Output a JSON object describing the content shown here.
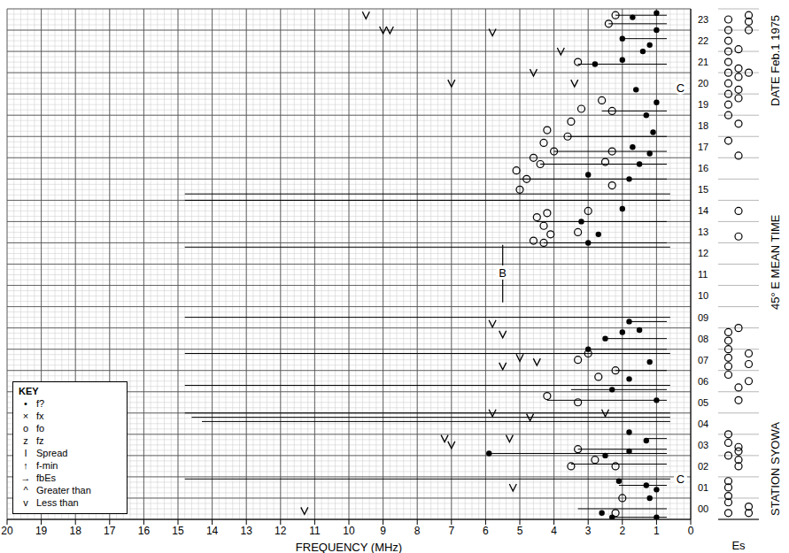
{
  "chart_data": {
    "type": "scatter",
    "title": "STATION SYOWA",
    "subtitle": "DATE Feb.1 1975",
    "y_label": "45° E MEAN TIME",
    "x_label": "FREQUENCY (MHz)",
    "xlim": [
      0,
      20
    ],
    "xticks": [
      0,
      1,
      2,
      3,
      4,
      5,
      6,
      7,
      8,
      9,
      10,
      11,
      12,
      13,
      14,
      15,
      16,
      17,
      18,
      19,
      20
    ],
    "ylim": [
      0,
      24
    ],
    "yticks": [
      {
        "value": 0.5,
        "label": "00"
      },
      {
        "value": 1.5,
        "label": "01"
      },
      {
        "value": 2.5,
        "label": "02"
      },
      {
        "value": 3.5,
        "label": "03"
      },
      {
        "value": 4.5,
        "label": "04"
      },
      {
        "value": 5.5,
        "label": "05"
      },
      {
        "value": 6.5,
        "label": "06"
      },
      {
        "value": 7.5,
        "label": "07"
      },
      {
        "value": 8.5,
        "label": "08"
      },
      {
        "value": 9.5,
        "label": "09"
      },
      {
        "value": 10.5,
        "label": "10"
      },
      {
        "value": 11.5,
        "label": "11"
      },
      {
        "value": 12.5,
        "label": "12"
      },
      {
        "value": 13.5,
        "label": "13"
      },
      {
        "value": 14.5,
        "label": "14"
      },
      {
        "value": 15.5,
        "label": "15"
      },
      {
        "value": 16.5,
        "label": "16"
      },
      {
        "value": 17.5,
        "label": "17"
      },
      {
        "value": 18.5,
        "label": "18"
      },
      {
        "value": 19.5,
        "label": "19"
      },
      {
        "value": 20.5,
        "label": "20"
      },
      {
        "value": 21.5,
        "label": "21"
      },
      {
        "value": 22.5,
        "label": "22"
      },
      {
        "value": 23.5,
        "label": "23"
      }
    ],
    "grid": true,
    "series": [
      {
        "name": "f?",
        "color": "#000000",
        "marker": "dot",
        "points": [
          [
            2.3,
            0.1
          ],
          [
            1.0,
            0.1
          ],
          [
            1.2,
            1.0
          ],
          [
            1.0,
            1.4
          ],
          [
            1.3,
            1.6
          ],
          [
            2.1,
            1.8
          ],
          [
            2.6,
            0.3
          ],
          [
            1.8,
            3.2
          ],
          [
            1.3,
            3.7
          ],
          [
            1.8,
            4.1
          ],
          [
            2.5,
            3.0
          ],
          [
            5.9,
            3.1
          ],
          [
            1.0,
            5.6
          ],
          [
            2.3,
            6.1
          ],
          [
            1.8,
            6.6
          ],
          [
            1.2,
            7.4
          ],
          [
            2.5,
            8.5
          ],
          [
            1.5,
            8.9
          ],
          [
            1.8,
            9.3
          ],
          [
            3.0,
            8.0
          ],
          [
            2.0,
            8.8
          ],
          [
            3.0,
            13.0
          ],
          [
            2.7,
            13.4
          ],
          [
            3.2,
            14.0
          ],
          [
            2.0,
            14.6
          ],
          [
            3.0,
            16.2
          ],
          [
            1.8,
            16.0
          ],
          [
            1.5,
            16.7
          ],
          [
            1.2,
            17.2
          ],
          [
            1.7,
            17.5
          ],
          [
            1.1,
            18.2
          ],
          [
            1.3,
            19.0
          ],
          [
            1.0,
            19.6
          ],
          [
            1.6,
            20.2
          ],
          [
            2.8,
            21.4
          ],
          [
            2.0,
            21.6
          ],
          [
            1.4,
            22.0
          ],
          [
            1.2,
            22.3
          ],
          [
            2.0,
            22.6
          ],
          [
            1.0,
            23.0
          ],
          [
            1.7,
            23.6
          ],
          [
            1.0,
            23.8
          ]
        ]
      },
      {
        "name": "fo",
        "color": "#000000",
        "marker": "circle",
        "points": [
          [
            4.3,
            13.0
          ],
          [
            4.6,
            13.1
          ],
          [
            4.1,
            13.4
          ],
          [
            4.3,
            13.8
          ],
          [
            4.5,
            14.2
          ],
          [
            4.2,
            14.4
          ],
          [
            3.0,
            14.5
          ],
          [
            3.3,
            13.5
          ],
          [
            5.0,
            15.5
          ],
          [
            4.8,
            16.0
          ],
          [
            5.1,
            16.4
          ],
          [
            4.4,
            16.7
          ],
          [
            4.6,
            17.0
          ],
          [
            4.0,
            17.3
          ],
          [
            4.3,
            17.7
          ],
          [
            3.6,
            18.0
          ],
          [
            4.2,
            18.3
          ],
          [
            3.5,
            18.7
          ],
          [
            3.2,
            19.3
          ],
          [
            2.6,
            19.7
          ],
          [
            2.3,
            19.2
          ],
          [
            3.3,
            21.5
          ],
          [
            2.4,
            23.3
          ],
          [
            2.2,
            23.7
          ],
          [
            2.3,
            15.7
          ],
          [
            2.5,
            16.8
          ],
          [
            2.3,
            17.3
          ],
          [
            4.2,
            5.8
          ],
          [
            3.3,
            5.5
          ],
          [
            3.5,
            2.5
          ],
          [
            3.3,
            3.3
          ],
          [
            2.8,
            2.8
          ],
          [
            3.0,
            7.8
          ],
          [
            3.3,
            7.5
          ],
          [
            2.2,
            7.0
          ],
          [
            2.7,
            6.7
          ],
          [
            2.0,
            1.0
          ],
          [
            2.2,
            2.5
          ],
          [
            2.2,
            0.3
          ]
        ]
      },
      {
        "name": "Less than",
        "color": "#000000",
        "marker": "v",
        "points": [
          [
            11.3,
            0.4
          ],
          [
            7.0,
            3.5
          ],
          [
            7.2,
            3.8
          ],
          [
            5.3,
            3.8
          ],
          [
            5.2,
            1.5
          ],
          [
            5.8,
            5.0
          ],
          [
            5.8,
            9.2
          ],
          [
            5.5,
            8.7
          ],
          [
            5.0,
            7.6
          ],
          [
            4.5,
            7.4
          ],
          [
            5.5,
            7.2
          ],
          [
            9.5,
            23.7
          ],
          [
            8.8,
            23.0
          ],
          [
            9.0,
            23.0
          ],
          [
            5.8,
            22.9
          ],
          [
            7.0,
            20.5
          ],
          [
            4.6,
            21.0
          ],
          [
            3.8,
            22.0
          ],
          [
            3.4,
            20.5
          ],
          [
            2.5,
            5.0
          ],
          [
            4.7,
            4.8
          ]
        ]
      }
    ],
    "spread": [
      [
        1.9,
        14.8,
        0.6
      ],
      [
        4.6,
        14.3,
        0.6
      ],
      [
        4.8,
        14.6,
        0.6
      ],
      [
        5.0,
        14.8,
        0.6
      ],
      [
        6.3,
        14.8,
        0.6
      ],
      [
        7.8,
        14.8,
        0.6
      ],
      [
        9.5,
        14.8,
        0.6
      ],
      [
        12.8,
        14.8,
        0.6
      ],
      [
        15.0,
        14.8,
        0.6
      ],
      [
        15.3,
        14.8,
        0.6
      ],
      [
        0.1,
        2.3,
        0.7
      ],
      [
        0.5,
        3.3,
        0.7
      ],
      [
        1.6,
        2.1,
        0.7
      ],
      [
        2.6,
        3.5,
        0.7
      ],
      [
        3.1,
        5.9,
        0.7
      ],
      [
        3.3,
        3.3,
        0.7
      ],
      [
        3.8,
        1.3,
        0.7
      ],
      [
        5.6,
        4.2,
        0.7
      ],
      [
        6.1,
        3.5,
        0.7
      ],
      [
        7.0,
        2.2,
        0.7
      ],
      [
        8.0,
        3.0,
        0.7
      ],
      [
        8.5,
        2.5,
        0.7
      ],
      [
        9.3,
        1.8,
        0.7
      ],
      [
        13.0,
        4.3,
        0.7
      ],
      [
        14.0,
        4.5,
        0.7
      ],
      [
        16.0,
        5.0,
        0.7
      ],
      [
        16.7,
        4.4,
        0.7
      ],
      [
        17.3,
        4.0,
        0.7
      ],
      [
        18.0,
        3.6,
        0.7
      ],
      [
        19.2,
        2.6,
        0.7
      ],
      [
        21.4,
        3.3,
        0.7
      ],
      [
        22.6,
        2.0,
        0.7
      ],
      [
        23.3,
        2.4,
        0.7
      ],
      [
        23.7,
        2.2,
        0.7
      ]
    ],
    "annotations": [
      {
        "text": "B",
        "x": 5.5,
        "y": 11.6,
        "from": 10.2,
        "to": 12.9
      },
      {
        "text": "C",
        "x": 0.3,
        "y": 1.9
      },
      {
        "text": "C",
        "x": 0.3,
        "y": 20.3
      }
    ],
    "key": {
      "title": "KEY",
      "entries": [
        {
          "symbol": "•",
          "text": "f?"
        },
        {
          "symbol": "×",
          "text": "fx"
        },
        {
          "symbol": "o",
          "text": "fo"
        },
        {
          "symbol": "z",
          "text": "fz"
        },
        {
          "symbol": "I",
          "text": "Spread"
        },
        {
          "symbol": "↑",
          "text": "f-min"
        },
        {
          "symbol": "→",
          "text": "fbEs"
        },
        {
          "symbol": "^",
          "text": "Greater than"
        },
        {
          "symbol": "v",
          "text": "Less than"
        }
      ]
    },
    "es": {
      "label": "Es",
      "xlim": [
        0,
        4
      ],
      "marker": "circle",
      "points": [
        [
          1,
          0.3
        ],
        [
          1,
          0.8
        ],
        [
          1,
          1.1
        ],
        [
          1,
          1.5
        ],
        [
          1,
          1.8
        ],
        [
          1,
          3.0
        ],
        [
          1,
          3.6
        ],
        [
          1,
          4.0
        ],
        [
          1,
          6.8
        ],
        [
          1,
          7.2
        ],
        [
          1,
          7.6
        ],
        [
          1,
          8.0
        ],
        [
          1,
          8.4
        ],
        [
          1,
          8.8
        ],
        [
          1,
          17.8
        ],
        [
          1,
          19.0
        ],
        [
          1,
          19.5
        ],
        [
          1,
          20.0
        ],
        [
          1,
          20.5
        ],
        [
          1,
          21.0
        ],
        [
          1,
          21.5
        ],
        [
          1,
          22.0
        ],
        [
          1,
          22.5
        ],
        [
          1,
          23.0
        ],
        [
          1,
          23.5
        ],
        [
          2,
          2.5
        ],
        [
          2,
          2.8
        ],
        [
          2,
          3.2
        ],
        [
          2,
          3.4
        ],
        [
          2,
          5.6
        ],
        [
          2,
          6.2
        ],
        [
          2,
          9.0
        ],
        [
          2,
          13.3
        ],
        [
          2,
          14.5
        ],
        [
          2,
          17.1
        ],
        [
          2,
          18.6
        ],
        [
          2,
          19.8
        ],
        [
          2,
          20.2
        ],
        [
          2,
          20.8
        ],
        [
          2,
          21.2
        ],
        [
          2,
          22.1
        ],
        [
          3,
          0.3
        ],
        [
          3,
          0.6
        ],
        [
          3,
          6.5
        ],
        [
          3,
          7.3
        ],
        [
          3,
          7.8
        ],
        [
          3,
          21.0
        ],
        [
          3,
          23.0
        ],
        [
          3,
          23.4
        ],
        [
          3,
          23.7
        ]
      ]
    }
  }
}
